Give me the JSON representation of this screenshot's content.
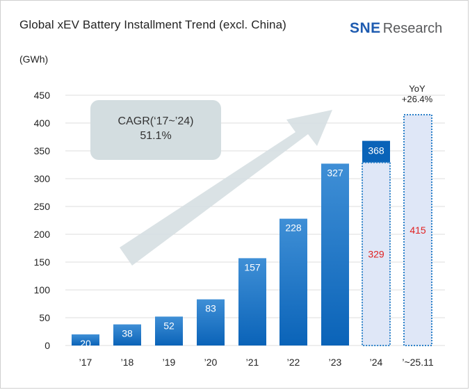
{
  "header": {
    "title": "Global xEV Battery Installment Trend (excl. China)",
    "logo_brand": "SNE",
    "logo_suffix": "Research",
    "unit": "(GWh)"
  },
  "colors": {
    "bar_top": "#3f8fd6",
    "bar_bottom": "#0a63b8",
    "partial_fill": "#dfe7f7",
    "partial_border": "#2a80c8",
    "partial_label": "#e02020",
    "arrow": "#d6dfe2",
    "cagr_box": "#d3dde0"
  },
  "annotations": {
    "cagr_line1": "CAGR(‘17~’24)",
    "cagr_line2": "51.1%",
    "yoy_line1": "YoY",
    "yoy_line2": "+26.4%"
  },
  "chart_data": {
    "type": "bar",
    "title": "Global xEV Battery Installment Trend (excl. China)",
    "ylabel": "(GWh)",
    "xlabel": "",
    "ylim": [
      0,
      450
    ],
    "yticks": [
      0,
      50,
      100,
      150,
      200,
      250,
      300,
      350,
      400,
      450
    ],
    "grid": true,
    "categories": [
      "’17",
      "’18",
      "’19",
      "’20",
      "’21",
      "’22",
      "’23",
      "’24",
      "’~25.11"
    ],
    "values": [
      20,
      38,
      52,
      83,
      157,
      228,
      327,
      368,
      415
    ],
    "partial_period_values": {
      "’24": 329,
      "’~25.11": 415
    }
  }
}
